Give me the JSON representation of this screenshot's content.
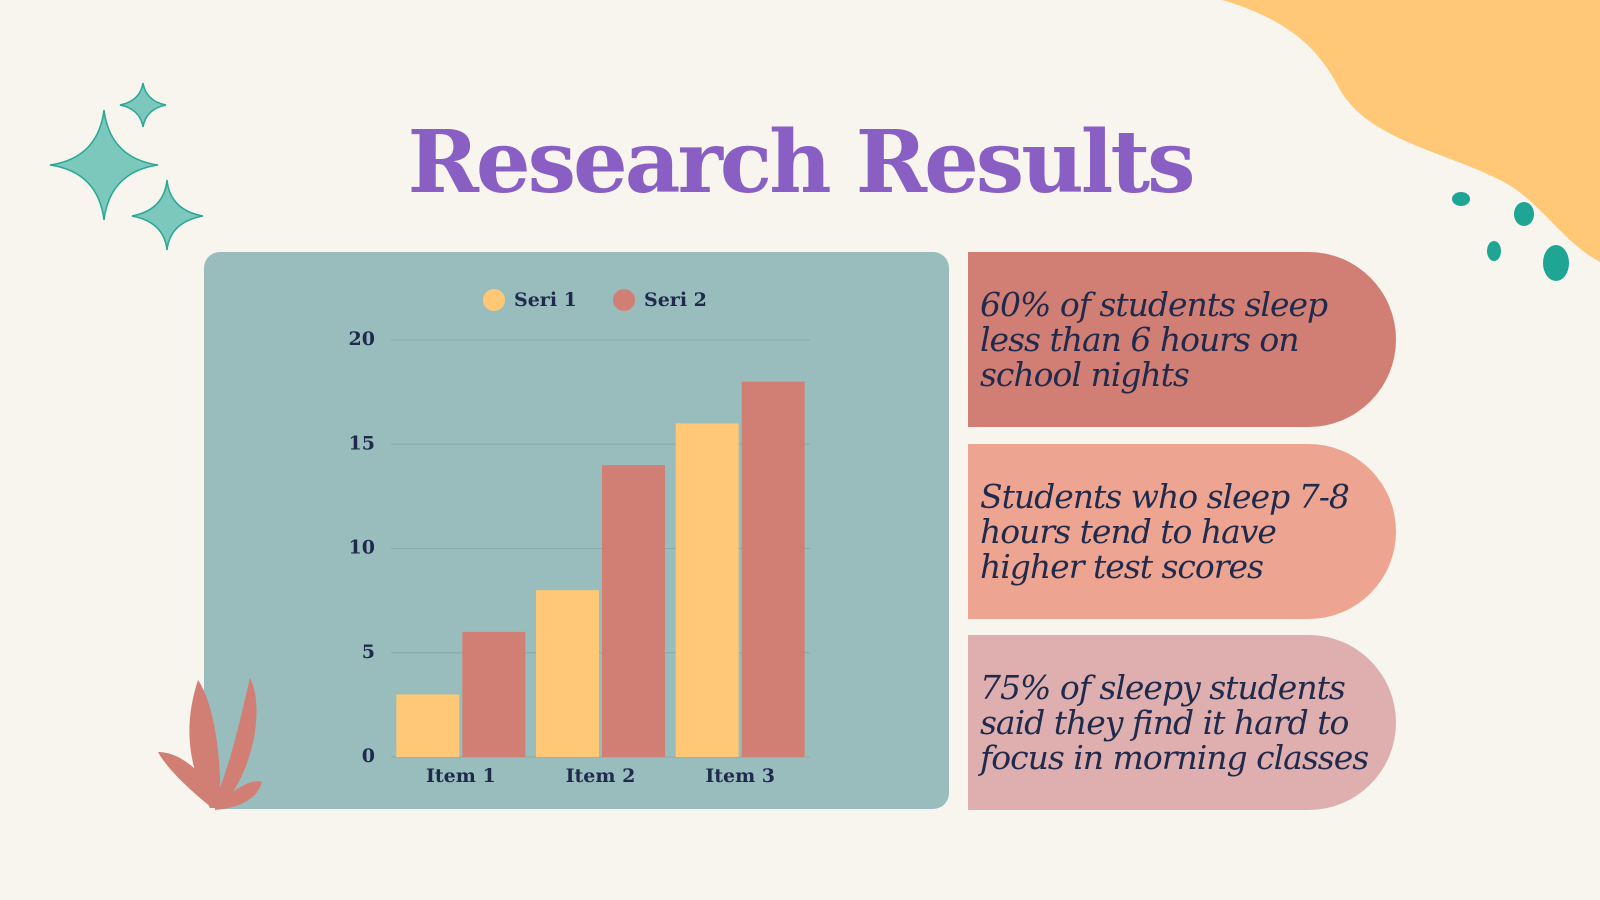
{
  "slide": {
    "title": "Research Results"
  },
  "notes": [
    "60% of students sleep less than 6 hours on school nights",
    "Students who sleep 7-8 hours tend to have higher test scores",
    "75% of sleepy students said they find it hard to focus in morning classes"
  ],
  "chart_data": {
    "type": "bar",
    "categories": [
      "Item 1",
      "Item 2",
      "Item 3"
    ],
    "series": [
      {
        "name": "Seri 1",
        "color": "#fec877",
        "values": [
          3,
          8,
          16
        ]
      },
      {
        "name": "Seri 2",
        "color": "#d17f75",
        "values": [
          6,
          14,
          18
        ]
      }
    ],
    "ylim": [
      0,
      20
    ],
    "yticks": [
      0,
      5,
      10,
      15,
      20
    ],
    "grid": true,
    "legend": "top"
  }
}
